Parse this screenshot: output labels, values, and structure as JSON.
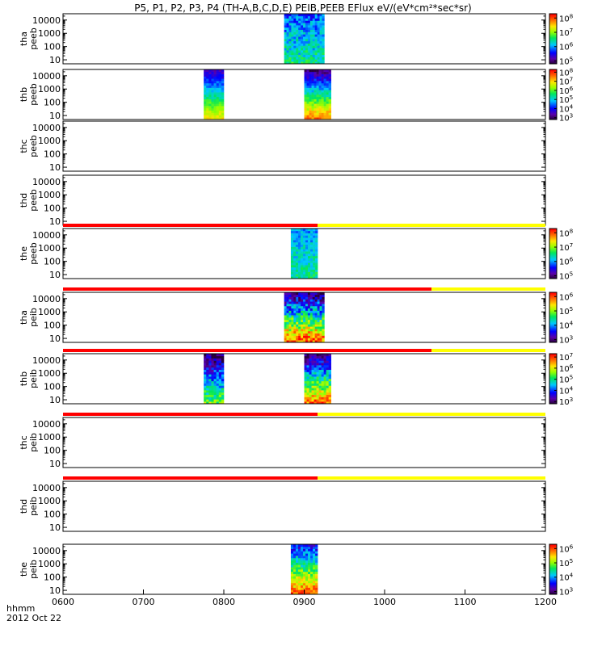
{
  "title": "P5, P1, P2, P3, P4 (TH-A,B,C,D,E) PEIB,PEEB EFlux eV/(eV*cm²*sec*sr)",
  "x_axis": {
    "label_top": "hhmm",
    "label_bottom": "2012 Oct 22",
    "ticks": [
      "0600",
      "0700",
      "0800",
      "0900",
      "1000",
      "1100",
      "1200"
    ]
  },
  "y_ticks": [
    "10000",
    "1000",
    "100",
    "10"
  ],
  "chart_data": {
    "type": "heatmap",
    "x_range": [
      "0600",
      "1200"
    ],
    "y_scale": "log",
    "ylim_eV": [
      5,
      30000
    ],
    "panels": [
      {
        "name": "tha peeb",
        "probe": "tha",
        "product": "peeb",
        "colorbar_ticks": [
          "10^8",
          "10^7",
          "10^6",
          "10^5"
        ],
        "colorbar_exp_range": [
          4.8,
          8.3
        ],
        "segments": [
          {
            "start": "0845",
            "end": "0915",
            "low": 5.8,
            "high": 6.5,
            "noisy": 0.4
          }
        ],
        "flag_bar": null
      },
      {
        "name": "thb peeb",
        "probe": "thb",
        "product": "peeb",
        "colorbar_ticks": [
          "10^8",
          "10^7",
          "10^6",
          "10^5",
          "10^4",
          "10^3"
        ],
        "colorbar_exp_range": [
          2.8,
          8.3
        ],
        "segments": [
          {
            "start": "0745",
            "end": "0800",
            "low": 3.5,
            "high": 7.0,
            "noisy": 0.3
          },
          {
            "start": "0900",
            "end": "0920",
            "low": 3.2,
            "high": 7.6,
            "noisy": 0.4
          }
        ],
        "flag_bar": null
      },
      {
        "name": "thc peeb",
        "probe": "thc",
        "product": "peeb",
        "colorbar_ticks": [],
        "segments": [],
        "flag_bar": null
      },
      {
        "name": "thd peeb",
        "probe": "thd",
        "product": "peeb",
        "colorbar_ticks": [],
        "segments": [],
        "flag_bar": null
      },
      {
        "name": "the peeb",
        "probe": "the",
        "product": "peeb",
        "colorbar_ticks": [
          "10^8",
          "10^7",
          "10^6",
          "10^5"
        ],
        "colorbar_exp_range": [
          4.8,
          8.3
        ],
        "segments": [
          {
            "start": "0850",
            "end": "0910",
            "low": 6.0,
            "high": 6.5,
            "noisy": 0.3
          }
        ],
        "flag_bar": {
          "red_until": "0910"
        }
      },
      {
        "name": "tha peib",
        "probe": "tha",
        "product": "peib",
        "colorbar_ticks": [
          "10^6",
          "10^5",
          "10^4",
          "10^3"
        ],
        "colorbar_exp_range": [
          2.8,
          6.3
        ],
        "segments": [
          {
            "start": "0845",
            "end": "0915",
            "low": 3.0,
            "high": 6.0,
            "noisy": 0.6
          }
        ],
        "flag_bar": {
          "red_until": "1035"
        }
      },
      {
        "name": "thb peib",
        "probe": "thb",
        "product": "peib",
        "colorbar_ticks": [
          "10^7",
          "10^6",
          "10^5",
          "10^4",
          "10^3"
        ],
        "colorbar_exp_range": [
          2.8,
          7.3
        ],
        "segments": [
          {
            "start": "0745",
            "end": "0800",
            "low": 3.0,
            "high": 5.5,
            "noisy": 0.6
          },
          {
            "start": "0900",
            "end": "0920",
            "low": 3.0,
            "high": 6.8,
            "noisy": 0.6
          }
        ],
        "flag_bar": {
          "red_until": "1035"
        }
      },
      {
        "name": "thc peib",
        "probe": "thc",
        "product": "peib",
        "colorbar_ticks": [],
        "segments": [],
        "flag_bar": {
          "red_until": "0910"
        }
      },
      {
        "name": "thd peib",
        "probe": "thd",
        "product": "peib",
        "colorbar_ticks": [],
        "segments": [],
        "flag_bar": {
          "red_until": "0910"
        }
      },
      {
        "name": "the peib",
        "probe": "the",
        "product": "peib",
        "colorbar_ticks": [
          "10^6",
          "10^5",
          "10^4",
          "10^3"
        ],
        "colorbar_exp_range": [
          2.8,
          6.3
        ],
        "segments": [
          {
            "start": "0850",
            "end": "0910",
            "low": 3.5,
            "high": 6.0,
            "noisy": 0.4
          }
        ],
        "flag_bar": null
      }
    ]
  },
  "colors": {
    "flag_red": "#ff0000",
    "flag_yellow": "#ffff00",
    "axis": "#000000"
  }
}
